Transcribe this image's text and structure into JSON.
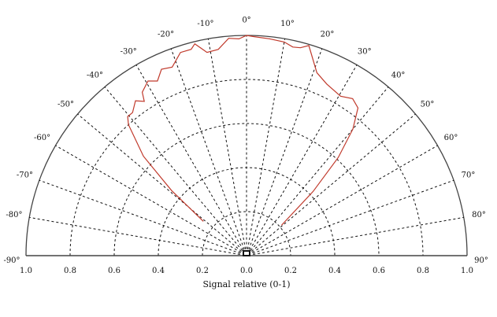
{
  "chart_data": {
    "type": "polar-line",
    "title": "",
    "xlabel": "Signal relative (0-1)",
    "angle_range": [
      -90,
      90
    ],
    "angle_ticks": [
      -90,
      -80,
      -70,
      -60,
      -50,
      -40,
      -30,
      -20,
      -10,
      0,
      10,
      20,
      30,
      40,
      50,
      60,
      70,
      80,
      90
    ],
    "angle_tick_labels": [
      "-90°",
      "-80°",
      "-70°",
      "-60°",
      "-50°",
      "-40°",
      "-30°",
      "-20°",
      "-10°",
      "0°",
      "10°",
      "20°",
      "30°",
      "40°",
      "50°",
      "60°",
      "70°",
      "80°",
      "90°"
    ],
    "radial_range": [
      0,
      1
    ],
    "radial_ticks": [
      0.2,
      0.4,
      0.6,
      0.8,
      1.0
    ],
    "radial_tick_labels": [
      "1.0",
      "0.8",
      "0.6",
      "0.4",
      "0.2",
      "0.0",
      "0.2",
      "0.4",
      "0.6",
      "0.8",
      "1.0"
    ],
    "grid": true,
    "series": [
      {
        "color": "#c0392b",
        "points": [
          {
            "angle": -51.5,
            "r": 0.25
          },
          {
            "angle": -49,
            "r": 0.45
          },
          {
            "angle": -46,
            "r": 0.65
          },
          {
            "angle": -42,
            "r": 0.8
          },
          {
            "angle": -40.5,
            "r": 0.83
          },
          {
            "angle": -38.5,
            "r": 0.83
          },
          {
            "angle": -35.6,
            "r": 0.865
          },
          {
            "angle": -33.5,
            "r": 0.84
          },
          {
            "angle": -32.5,
            "r": 0.88
          },
          {
            "angle": -29.4,
            "r": 0.91
          },
          {
            "angle": -27,
            "r": 0.89
          },
          {
            "angle": -24.5,
            "r": 0.93
          },
          {
            "angle": -21.5,
            "r": 0.92
          },
          {
            "angle": -18,
            "r": 0.97
          },
          {
            "angle": -15,
            "r": 0.97
          },
          {
            "angle": -13.7,
            "r": 0.99
          },
          {
            "angle": -11,
            "r": 0.94
          },
          {
            "angle": -7.8,
            "r": 0.945
          },
          {
            "angle": -4.7,
            "r": 0.99
          },
          {
            "angle": -2,
            "r": 0.985
          },
          {
            "angle": 0,
            "r": 1.0
          },
          {
            "angle": 2,
            "r": 0.995
          },
          {
            "angle": 6,
            "r": 0.99
          },
          {
            "angle": 10,
            "r": 0.985
          },
          {
            "angle": 12.5,
            "r": 0.97
          },
          {
            "angle": 14.5,
            "r": 0.975
          },
          {
            "angle": 16.5,
            "r": 0.995
          },
          {
            "angle": 21,
            "r": 0.89
          },
          {
            "angle": 25,
            "r": 0.86
          },
          {
            "angle": 30.5,
            "r": 0.84
          },
          {
            "angle": 34,
            "r": 0.86
          },
          {
            "angle": 37,
            "r": 0.84
          },
          {
            "angle": 40,
            "r": 0.75
          },
          {
            "angle": 43,
            "r": 0.61
          },
          {
            "angle": 46,
            "r": 0.42
          },
          {
            "angle": 49,
            "r": 0.21
          }
        ]
      }
    ]
  }
}
